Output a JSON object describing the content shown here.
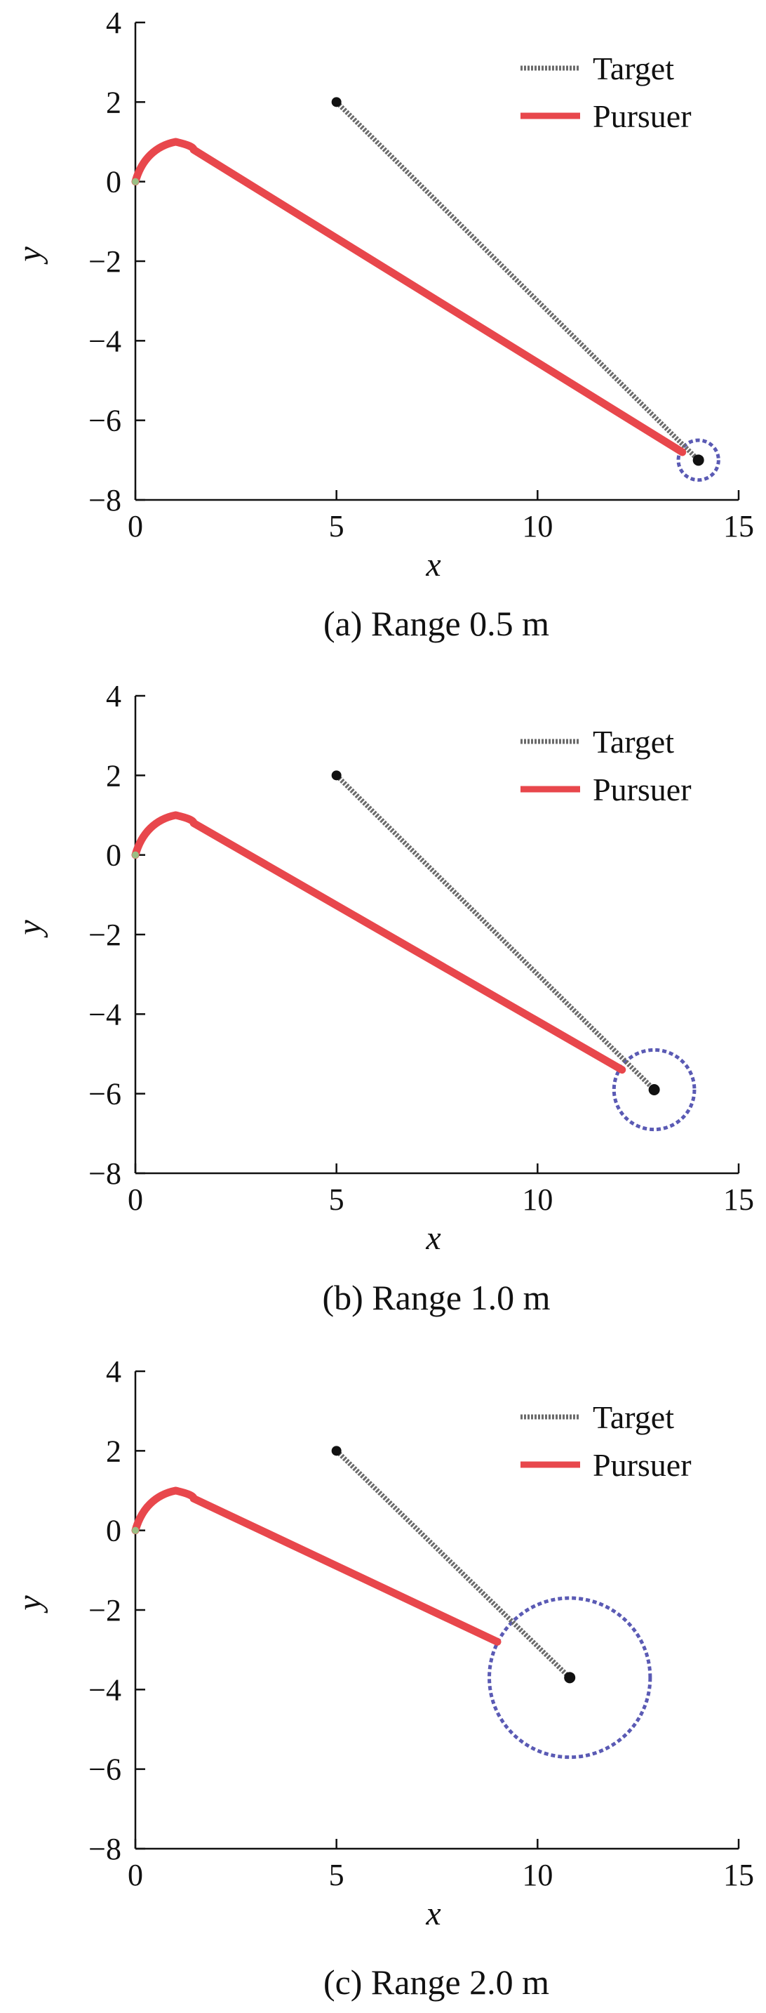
{
  "colors": {
    "target": "#6b6b6b",
    "pursuer": "#e8474c",
    "range_circle": "#5a5ab4",
    "axis": "#111111"
  },
  "chart_data": [
    {
      "type": "line",
      "caption": "(a) Range 0.5 m",
      "xlabel": "x",
      "ylabel": "y",
      "xlim": [
        0,
        15
      ],
      "ylim": [
        -8,
        4
      ],
      "xticks": [
        "0",
        "5",
        "10",
        "15"
      ],
      "yticks": [
        "4",
        "2",
        "0",
        "−2",
        "−4",
        "−6",
        "−8"
      ],
      "legend": {
        "location": "top-right",
        "entries": [
          "Target",
          "Pursuer"
        ]
      },
      "series": [
        {
          "name": "Target",
          "style": "dotted",
          "x": [
            5,
            14
          ],
          "y": [
            2,
            -7
          ]
        },
        {
          "name": "Pursuer",
          "style": "solid",
          "x": [
            0,
            0.15,
            0.5,
            1.0,
            1.45,
            13.6
          ],
          "y": [
            0,
            0.55,
            0.9,
            1.0,
            0.8,
            -6.8
          ]
        }
      ],
      "range_circle": {
        "center": [
          14,
          -7
        ],
        "radius": 0.5
      }
    },
    {
      "type": "line",
      "caption": "(b) Range 1.0 m",
      "xlabel": "x",
      "ylabel": "y",
      "xlim": [
        0,
        15
      ],
      "ylim": [
        -8,
        4
      ],
      "xticks": [
        "0",
        "5",
        "10",
        "15"
      ],
      "yticks": [
        "4",
        "2",
        "0",
        "−2",
        "−4",
        "−6",
        "−8"
      ],
      "legend": {
        "location": "top-right",
        "entries": [
          "Target",
          "Pursuer"
        ]
      },
      "series": [
        {
          "name": "Target",
          "style": "dotted",
          "x": [
            5,
            12.9
          ],
          "y": [
            2,
            -5.9
          ]
        },
        {
          "name": "Pursuer",
          "style": "solid",
          "x": [
            0,
            0.15,
            0.5,
            1.0,
            1.45,
            12.1
          ],
          "y": [
            0,
            0.55,
            0.9,
            1.0,
            0.8,
            -5.4
          ]
        }
      ],
      "range_circle": {
        "center": [
          12.9,
          -5.9
        ],
        "radius": 1.0
      }
    },
    {
      "type": "line",
      "caption": "(c) Range 2.0 m",
      "xlabel": "x",
      "ylabel": "y",
      "xlim": [
        0,
        15
      ],
      "ylim": [
        -8,
        4
      ],
      "xticks": [
        "0",
        "5",
        "10",
        "15"
      ],
      "yticks": [
        "4",
        "2",
        "0",
        "−2",
        "−4",
        "−6",
        "−8"
      ],
      "legend": {
        "location": "top-right",
        "entries": [
          "Target",
          "Pursuer"
        ]
      },
      "series": [
        {
          "name": "Target",
          "style": "dotted",
          "x": [
            5,
            10.8
          ],
          "y": [
            2,
            -3.7
          ]
        },
        {
          "name": "Pursuer",
          "style": "solid",
          "x": [
            0,
            0.15,
            0.5,
            1.0,
            1.45,
            9.0
          ],
          "y": [
            0,
            0.55,
            0.9,
            1.0,
            0.8,
            -2.8
          ]
        }
      ],
      "range_circle": {
        "center": [
          10.8,
          -3.7
        ],
        "radius": 2.0
      }
    }
  ]
}
